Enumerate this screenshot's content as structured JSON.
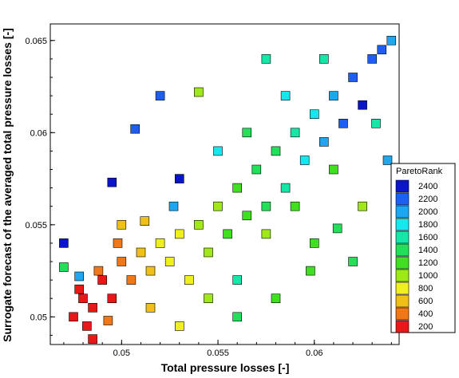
{
  "chart_data": {
    "type": "scatter",
    "xlabel": "Total pressure losses [-]",
    "ylabel": "Surrogate forecast of the averaged total pressure losses [-]",
    "xlim": [
      0.0463,
      0.0644
    ],
    "ylim": [
      0.0485,
      0.0659
    ],
    "x_ticks": [
      "0.05",
      "0.055",
      "0.06"
    ],
    "y_ticks": [
      "0.05",
      "0.055",
      "0.06",
      "0.065"
    ],
    "x_tick_values": [
      0.05,
      0.055,
      0.06
    ],
    "y_tick_values": [
      0.05,
      0.055,
      0.06,
      0.065
    ],
    "grid": false,
    "legend_placement": "right",
    "colorbar": {
      "title": "ParetoRank",
      "ticks": [
        "2400",
        "2200",
        "2000",
        "1800",
        "1600",
        "1400",
        "1200",
        "1000",
        "800",
        "600",
        "400",
        "200"
      ],
      "tick_values": [
        2400,
        2200,
        2000,
        1800,
        1600,
        1400,
        1200,
        1000,
        800,
        600,
        400,
        200
      ],
      "colors": [
        "#0a14c8",
        "#1e5ef0",
        "#1ea6f0",
        "#16e6ee",
        "#16e6a8",
        "#22e05a",
        "#40e020",
        "#a0e818",
        "#f0f020",
        "#f0c018",
        "#f07818",
        "#e81818"
      ]
    },
    "marker": "square",
    "points": [
      [
        0.0475,
        0.05,
        200
      ],
      [
        0.048,
        0.051,
        200
      ],
      [
        0.0485,
        0.0505,
        200
      ],
      [
        0.0478,
        0.0515,
        200
      ],
      [
        0.049,
        0.052,
        300
      ],
      [
        0.0482,
        0.0495,
        200
      ],
      [
        0.0495,
        0.051,
        300
      ],
      [
        0.0488,
        0.0525,
        400
      ],
      [
        0.05,
        0.053,
        400
      ],
      [
        0.0505,
        0.052,
        500
      ],
      [
        0.0498,
        0.054,
        500
      ],
      [
        0.051,
        0.0535,
        600
      ],
      [
        0.0515,
        0.0525,
        700
      ],
      [
        0.052,
        0.054,
        800
      ],
      [
        0.0525,
        0.053,
        800
      ],
      [
        0.053,
        0.0545,
        900
      ],
      [
        0.0535,
        0.052,
        900
      ],
      [
        0.054,
        0.055,
        1000
      ],
      [
        0.0545,
        0.0535,
        1000
      ],
      [
        0.055,
        0.056,
        1100
      ],
      [
        0.0555,
        0.0545,
        1200
      ],
      [
        0.056,
        0.057,
        1300
      ],
      [
        0.0565,
        0.0555,
        1300
      ],
      [
        0.057,
        0.058,
        1400
      ],
      [
        0.0575,
        0.056,
        1400
      ],
      [
        0.058,
        0.059,
        1500
      ],
      [
        0.0585,
        0.057,
        1600
      ],
      [
        0.059,
        0.06,
        1700
      ],
      [
        0.0595,
        0.0585,
        1800
      ],
      [
        0.06,
        0.061,
        1900
      ],
      [
        0.0605,
        0.0595,
        2000
      ],
      [
        0.061,
        0.062,
        2100
      ],
      [
        0.0615,
        0.0605,
        2200
      ],
      [
        0.062,
        0.063,
        2300
      ],
      [
        0.0625,
        0.0615,
        2400
      ],
      [
        0.063,
        0.064,
        2300
      ],
      [
        0.0635,
        0.0645,
        2200
      ],
      [
        0.064,
        0.065,
        2100
      ],
      [
        0.047,
        0.054,
        2400
      ],
      [
        0.0507,
        0.0602,
        2300
      ],
      [
        0.0495,
        0.0573,
        2400
      ],
      [
        0.052,
        0.062,
        2200
      ],
      [
        0.054,
        0.0622,
        1100
      ],
      [
        0.053,
        0.0575,
        2400
      ],
      [
        0.0605,
        0.064,
        1600
      ],
      [
        0.0575,
        0.064,
        1700
      ],
      [
        0.056,
        0.052,
        1600
      ],
      [
        0.058,
        0.051,
        1300
      ],
      [
        0.062,
        0.053,
        1500
      ],
      [
        0.06,
        0.054,
        1200
      ],
      [
        0.056,
        0.05,
        1400
      ],
      [
        0.053,
        0.0495,
        900
      ],
      [
        0.0485,
        0.0488,
        300
      ],
      [
        0.0493,
        0.0498,
        400
      ],
      [
        0.0515,
        0.0505,
        700
      ],
      [
        0.0545,
        0.051,
        1000
      ],
      [
        0.047,
        0.0527,
        1500
      ],
      [
        0.0478,
        0.0522,
        2100
      ],
      [
        0.05,
        0.055,
        600
      ],
      [
        0.0512,
        0.0552,
        700
      ],
      [
        0.0527,
        0.056,
        2000
      ],
      [
        0.055,
        0.059,
        1800
      ],
      [
        0.0565,
        0.06,
        1500
      ],
      [
        0.0585,
        0.062,
        1900
      ],
      [
        0.061,
        0.058,
        1300
      ],
      [
        0.0632,
        0.0605,
        1600
      ],
      [
        0.0638,
        0.0585,
        2000
      ],
      [
        0.0625,
        0.056,
        1100
      ],
      [
        0.059,
        0.056,
        1200
      ],
      [
        0.0575,
        0.0545,
        1100
      ],
      [
        0.0598,
        0.0525,
        1300
      ],
      [
        0.0612,
        0.0548,
        1400
      ]
    ]
  }
}
